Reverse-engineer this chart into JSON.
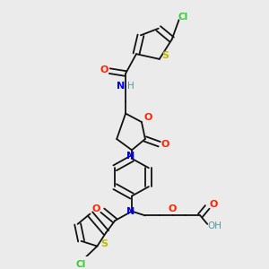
{
  "bg_color": "#ebebeb",
  "figsize": [
    3.0,
    3.0
  ],
  "dpi": 100,
  "colors": {
    "S": "#bbbb00",
    "Cl": "#33cc33",
    "N": "#0000ee",
    "O": "#ff2200",
    "H": "#559999",
    "C": "#111111",
    "bond": "#111111"
  },
  "lw": 1.3
}
